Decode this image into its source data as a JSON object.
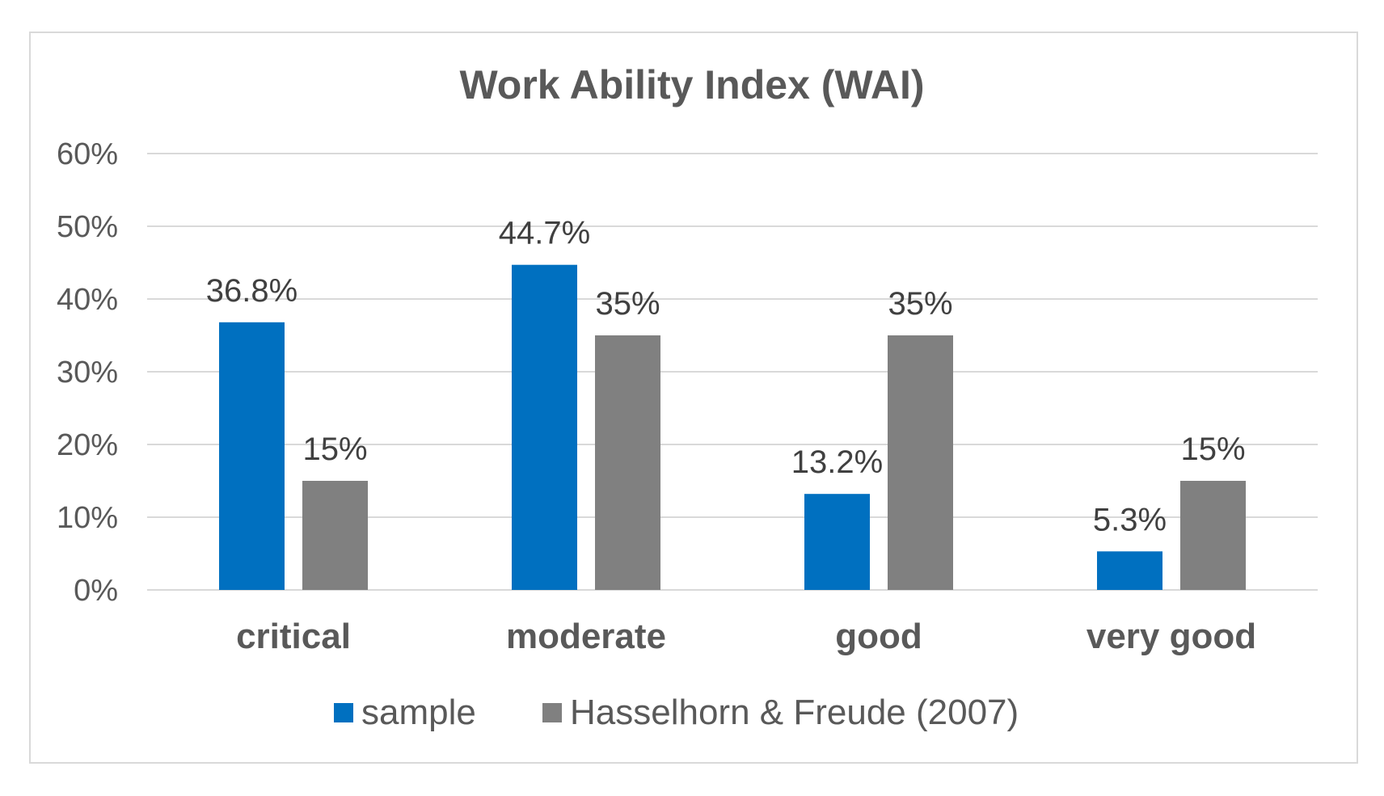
{
  "chart_data": {
    "type": "bar",
    "title": "Work Ability Index (WAI)",
    "categories": [
      "critical",
      "moderate",
      "good",
      "very good"
    ],
    "series": [
      {
        "name": "sample",
        "color": "#0070c0",
        "values": [
          36.8,
          44.7,
          13.2,
          5.3
        ],
        "labels": [
          "36.8%",
          "44.7%",
          "13.2%",
          "5.3%"
        ]
      },
      {
        "name": "Hasselhorn & Freude (2007)",
        "color": "#808080",
        "values": [
          15,
          35,
          35,
          15
        ],
        "labels": [
          "15%",
          "35%",
          "35%",
          "15%"
        ]
      }
    ],
    "ylim": [
      0,
      60
    ],
    "yticks": [
      "0%",
      "10%",
      "20%",
      "30%",
      "40%",
      "50%",
      "60%"
    ],
    "xlabel": "",
    "ylabel": "",
    "grid": true,
    "legend_position": "bottom"
  }
}
